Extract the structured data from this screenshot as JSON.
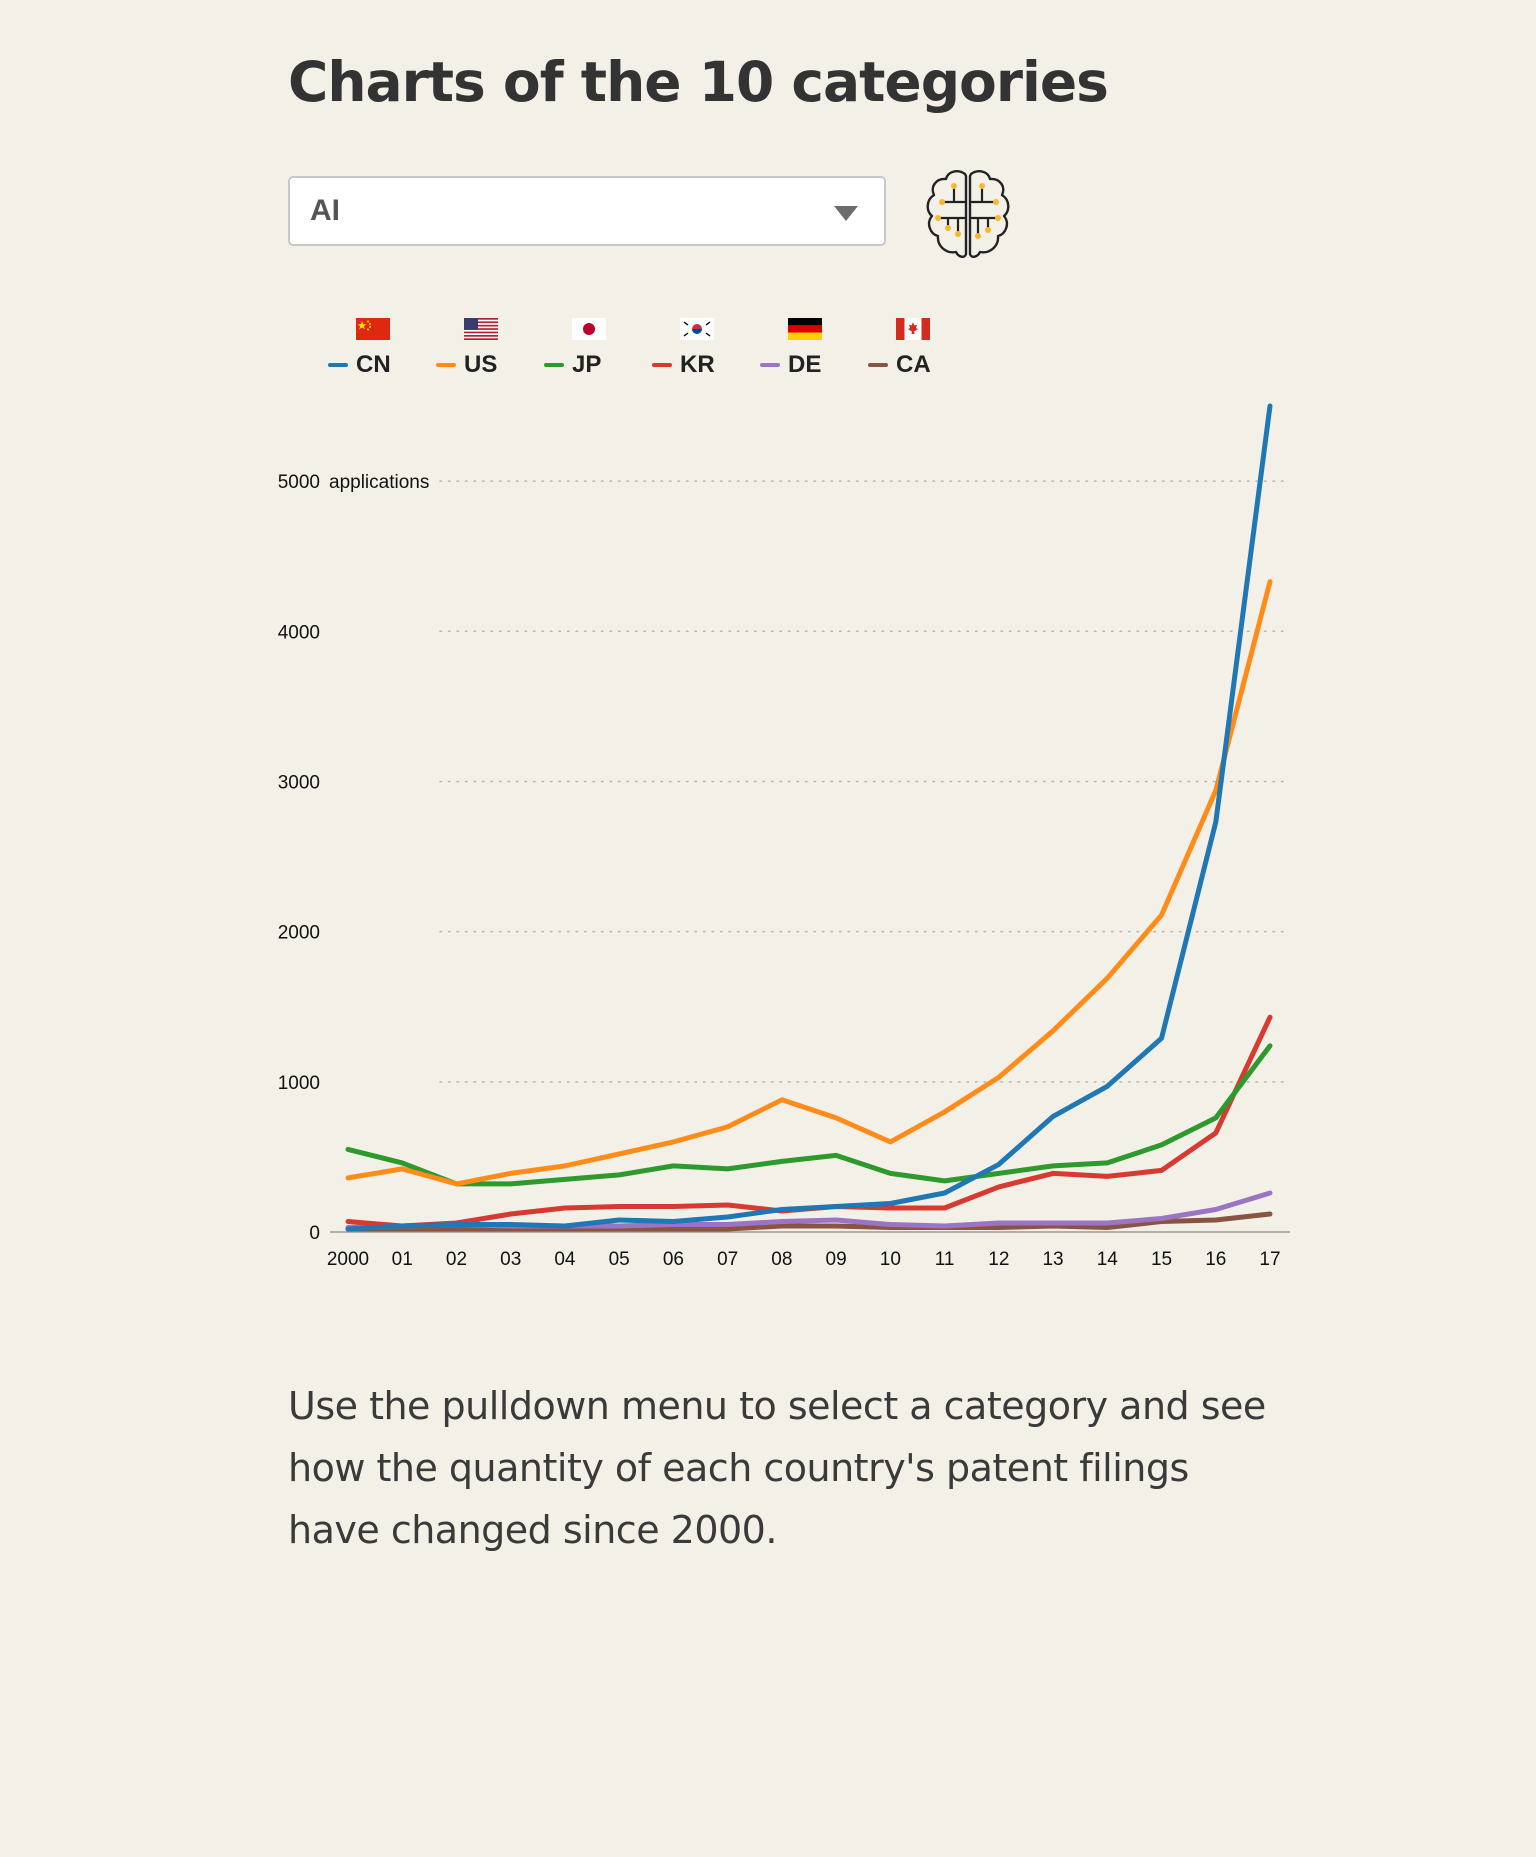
{
  "page": {
    "title": "Charts of the 10 categories",
    "description": "Use the pulldown menu to select a category and see how the quantity of each country's patent filings have changed since 2000."
  },
  "selector": {
    "selected": "AI",
    "icon": "brain-circuit-icon"
  },
  "legend": [
    {
      "code": "CN",
      "flag": "china-flag-icon",
      "color": "#1f77b4"
    },
    {
      "code": "US",
      "flag": "usa-flag-icon",
      "color": "#ff8c1a"
    },
    {
      "code": "JP",
      "flag": "japan-flag-icon",
      "color": "#2e9a2e"
    },
    {
      "code": "KR",
      "flag": "korea-flag-icon",
      "color": "#d63a30"
    },
    {
      "code": "DE",
      "flag": "germany-flag-icon",
      "color": "#9b74c4"
    },
    {
      "code": "CA",
      "flag": "canada-flag-icon",
      "color": "#8b5442"
    }
  ],
  "chart_data": {
    "type": "line",
    "x": [
      "2000",
      "01",
      "02",
      "03",
      "04",
      "05",
      "06",
      "07",
      "08",
      "09",
      "10",
      "11",
      "12",
      "13",
      "14",
      "15",
      "16",
      "17"
    ],
    "ylim": [
      0,
      5500
    ],
    "yticks": [
      {
        "value": 0,
        "label": "0"
      },
      {
        "value": 1000,
        "label": "1000"
      },
      {
        "value": 2000,
        "label": "2000"
      },
      {
        "value": 3000,
        "label": "3000"
      },
      {
        "value": 4000,
        "label": "4000"
      },
      {
        "value": 5000,
        "label": "5000"
      }
    ],
    "yunit": "applications",
    "grid": "dotted horizontal",
    "series": [
      {
        "name": "CN",
        "color": "#1f77b4",
        "values": [
          20,
          40,
          50,
          50,
          40,
          80,
          70,
          100,
          150,
          170,
          190,
          260,
          450,
          770,
          970,
          1290,
          2730,
          5500
        ]
      },
      {
        "name": "US",
        "color": "#ff8c1a",
        "values": [
          360,
          420,
          320,
          390,
          440,
          520,
          600,
          700,
          880,
          760,
          600,
          800,
          1030,
          1340,
          1690,
          2110,
          2940,
          4330
        ]
      },
      {
        "name": "JP",
        "color": "#2e9a2e",
        "values": [
          550,
          460,
          320,
          320,
          350,
          380,
          440,
          420,
          470,
          510,
          390,
          340,
          390,
          440,
          460,
          580,
          760,
          1240
        ]
      },
      {
        "name": "KR",
        "color": "#d63a30",
        "values": [
          70,
          40,
          60,
          120,
          160,
          170,
          170,
          180,
          140,
          170,
          160,
          160,
          300,
          390,
          370,
          410,
          660,
          1430
        ]
      },
      {
        "name": "DE",
        "color": "#9b74c4",
        "values": [
          30,
          40,
          50,
          40,
          40,
          40,
          50,
          50,
          70,
          80,
          50,
          40,
          60,
          60,
          60,
          90,
          150,
          260
        ]
      },
      {
        "name": "CA",
        "color": "#8b5442",
        "values": [
          20,
          20,
          20,
          20,
          20,
          20,
          20,
          20,
          40,
          40,
          30,
          30,
          30,
          40,
          30,
          70,
          80,
          120
        ]
      }
    ]
  }
}
